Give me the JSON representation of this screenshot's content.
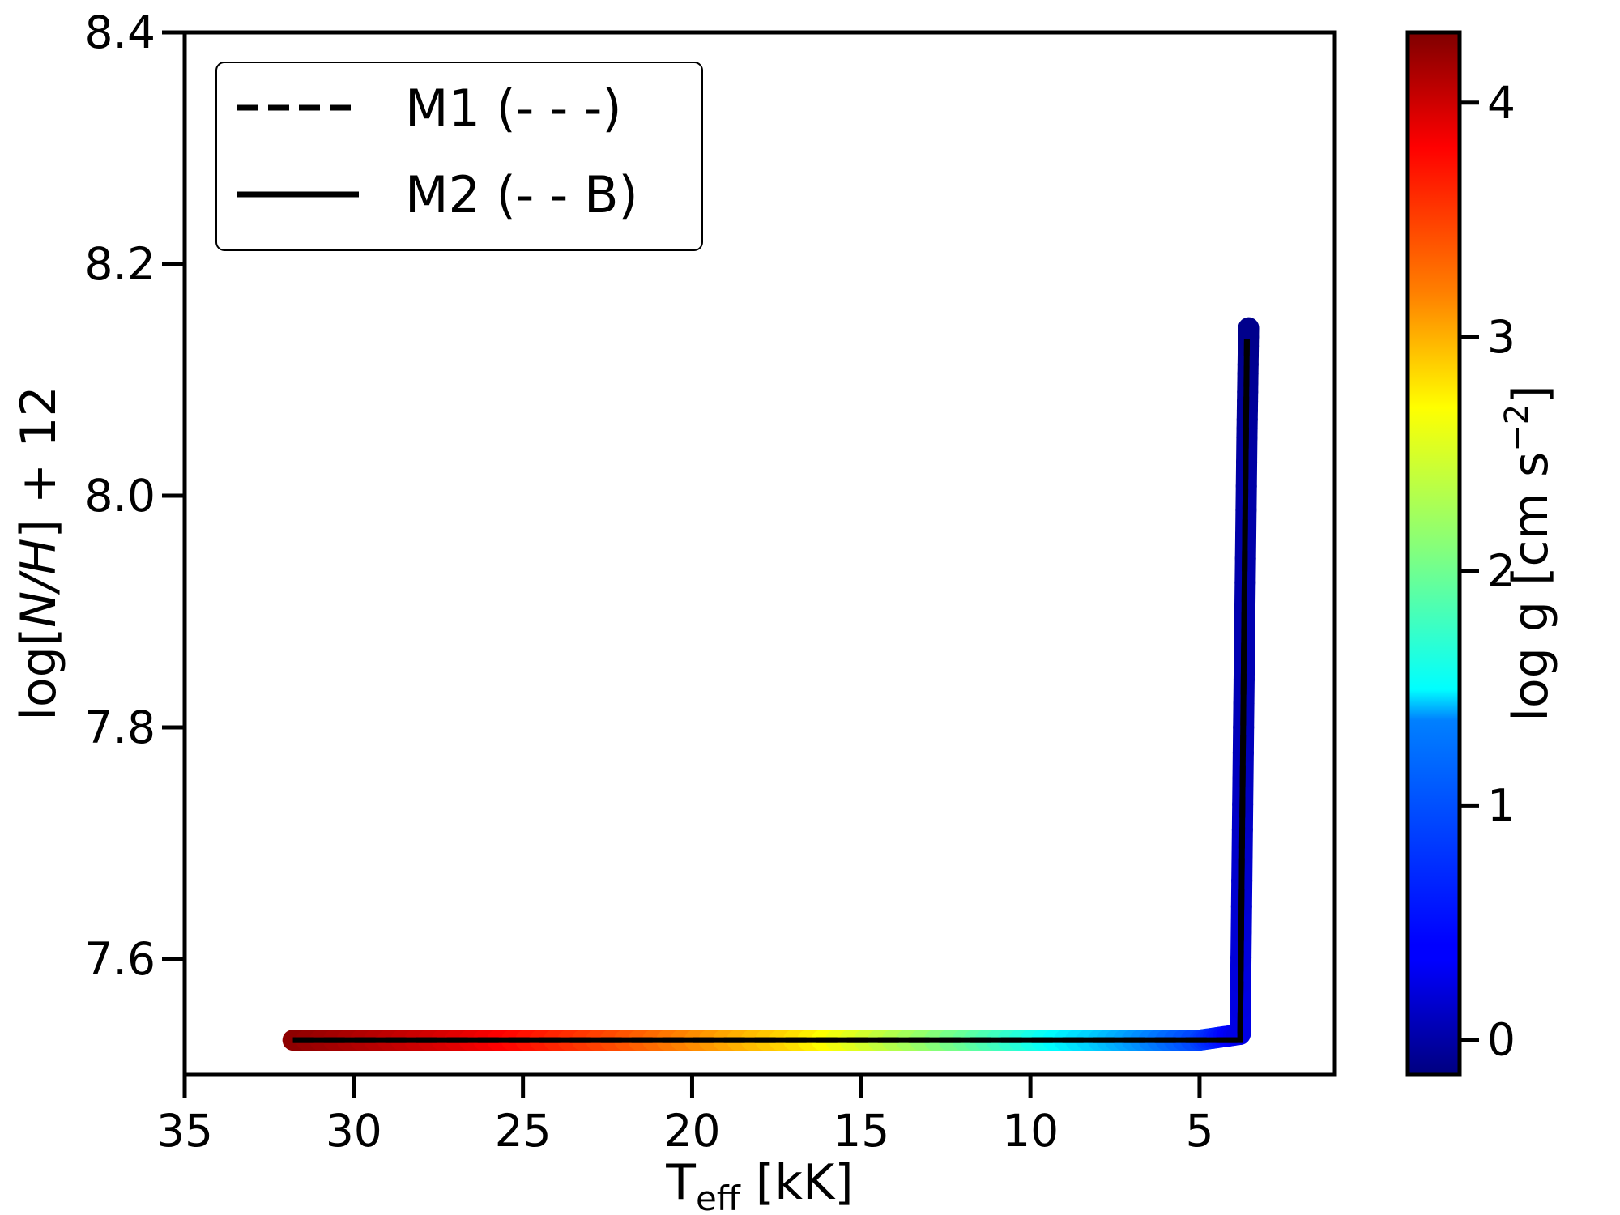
{
  "chart_data": {
    "type": "line",
    "x_axis": {
      "label_main": "T",
      "label_sub": "eff",
      "label_unit": " [kK]",
      "ticks": [
        35,
        30,
        25,
        20,
        15,
        10,
        5
      ],
      "range": [
        35,
        1
      ],
      "inverted": true
    },
    "y_axis": {
      "label_pre": "log[",
      "label_italic": "N/H",
      "label_post": "] + 12",
      "ticks": [
        "7.6",
        "7.8",
        "8.0",
        "8.2",
        "8.4"
      ],
      "range": [
        7.5,
        8.4
      ]
    },
    "colorbar": {
      "label_pre": "log g [cm s",
      "label_sup": "−2",
      "label_post": "]",
      "ticks": [
        "0",
        "1",
        "2",
        "3",
        "4"
      ],
      "range": [
        -0.15,
        4.3
      ],
      "colormap": "jet"
    },
    "legend": {
      "position": "top-left",
      "entries": [
        {
          "label": "M1 (- - -)",
          "style": "dashed"
        },
        {
          "label": "M2 (- - B)",
          "style": "solid"
        }
      ]
    },
    "series": [
      {
        "name": "M1 (- - -)",
        "style": "dashed",
        "x": [
          31.8,
          3.8,
          3.6
        ],
        "y": [
          7.53,
          7.53,
          8.135
        ]
      },
      {
        "name": "M2 (- - B)",
        "style": "solid",
        "x": [
          31.8,
          3.8,
          3.6
        ],
        "y": [
          7.53,
          7.53,
          8.135
        ]
      }
    ],
    "colored_track": {
      "x": [
        31.8,
        27,
        22,
        17,
        12,
        8,
        5,
        3.8,
        3.7,
        3.6,
        3.55
      ],
      "y": [
        7.53,
        7.53,
        7.53,
        7.53,
        7.53,
        7.53,
        7.53,
        7.535,
        7.8,
        8.05,
        8.145
      ],
      "logg": [
        4.25,
        3.9,
        3.4,
        2.8,
        2.0,
        1.3,
        0.7,
        0.3,
        0.1,
        0.0,
        -0.1
      ]
    }
  }
}
